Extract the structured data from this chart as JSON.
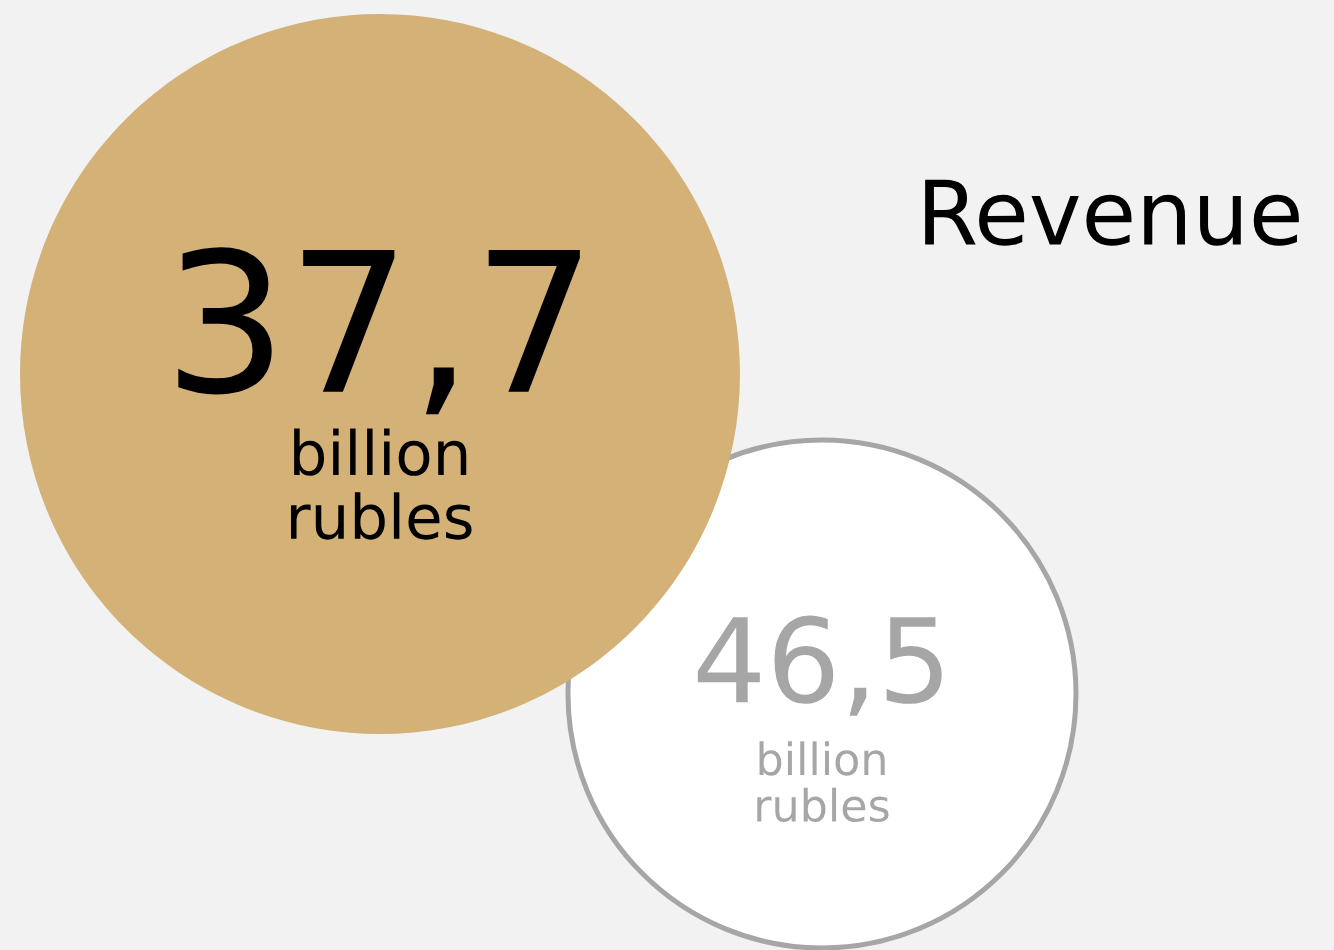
{
  "chart_data": {
    "type": "other",
    "title": "Revenue",
    "values": [
      37.7,
      46.5
    ],
    "value_labels": [
      "37,7",
      "46,5"
    ],
    "colors": [
      "#d3b177",
      "#ffffff"
    ],
    "annotations": [
      "billion\nrubles",
      "billion\nrubles"
    ]
  }
}
